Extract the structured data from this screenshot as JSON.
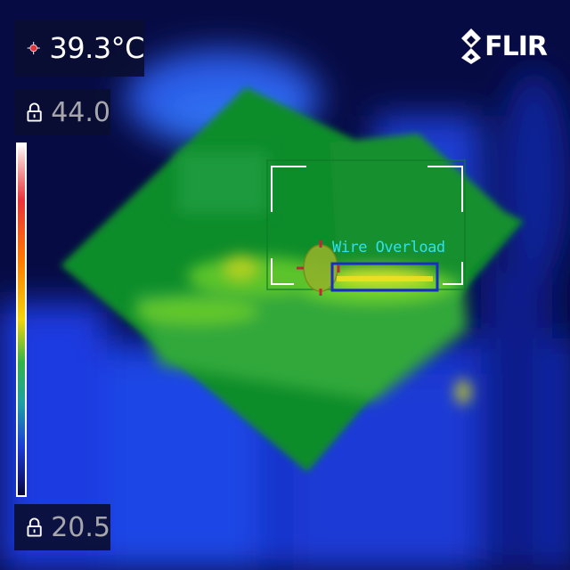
{
  "spot_meter": {
    "value": "39.3°C",
    "icon": "crosshair-icon",
    "icon_color": "#e8323a"
  },
  "scale": {
    "max_label": "44.0",
    "min_label": "20.5",
    "max_icon": "lock-icon",
    "min_icon": "lock-icon",
    "palette": [
      "#ffffff",
      "#e8323a",
      "#ff7a00",
      "#f2d40c",
      "#35b34a",
      "#1b3dd8",
      "#050832"
    ]
  },
  "brand": {
    "name": "FLIR",
    "icon": "flir-logo-icon"
  },
  "detection": {
    "label": "Wire Overload",
    "label_color": "#2fe0f0",
    "box_color": "#1a2cc8",
    "region_color": "#169a2e"
  },
  "colors": {
    "background": "#060a3a",
    "panel": "#0a0e32"
  }
}
